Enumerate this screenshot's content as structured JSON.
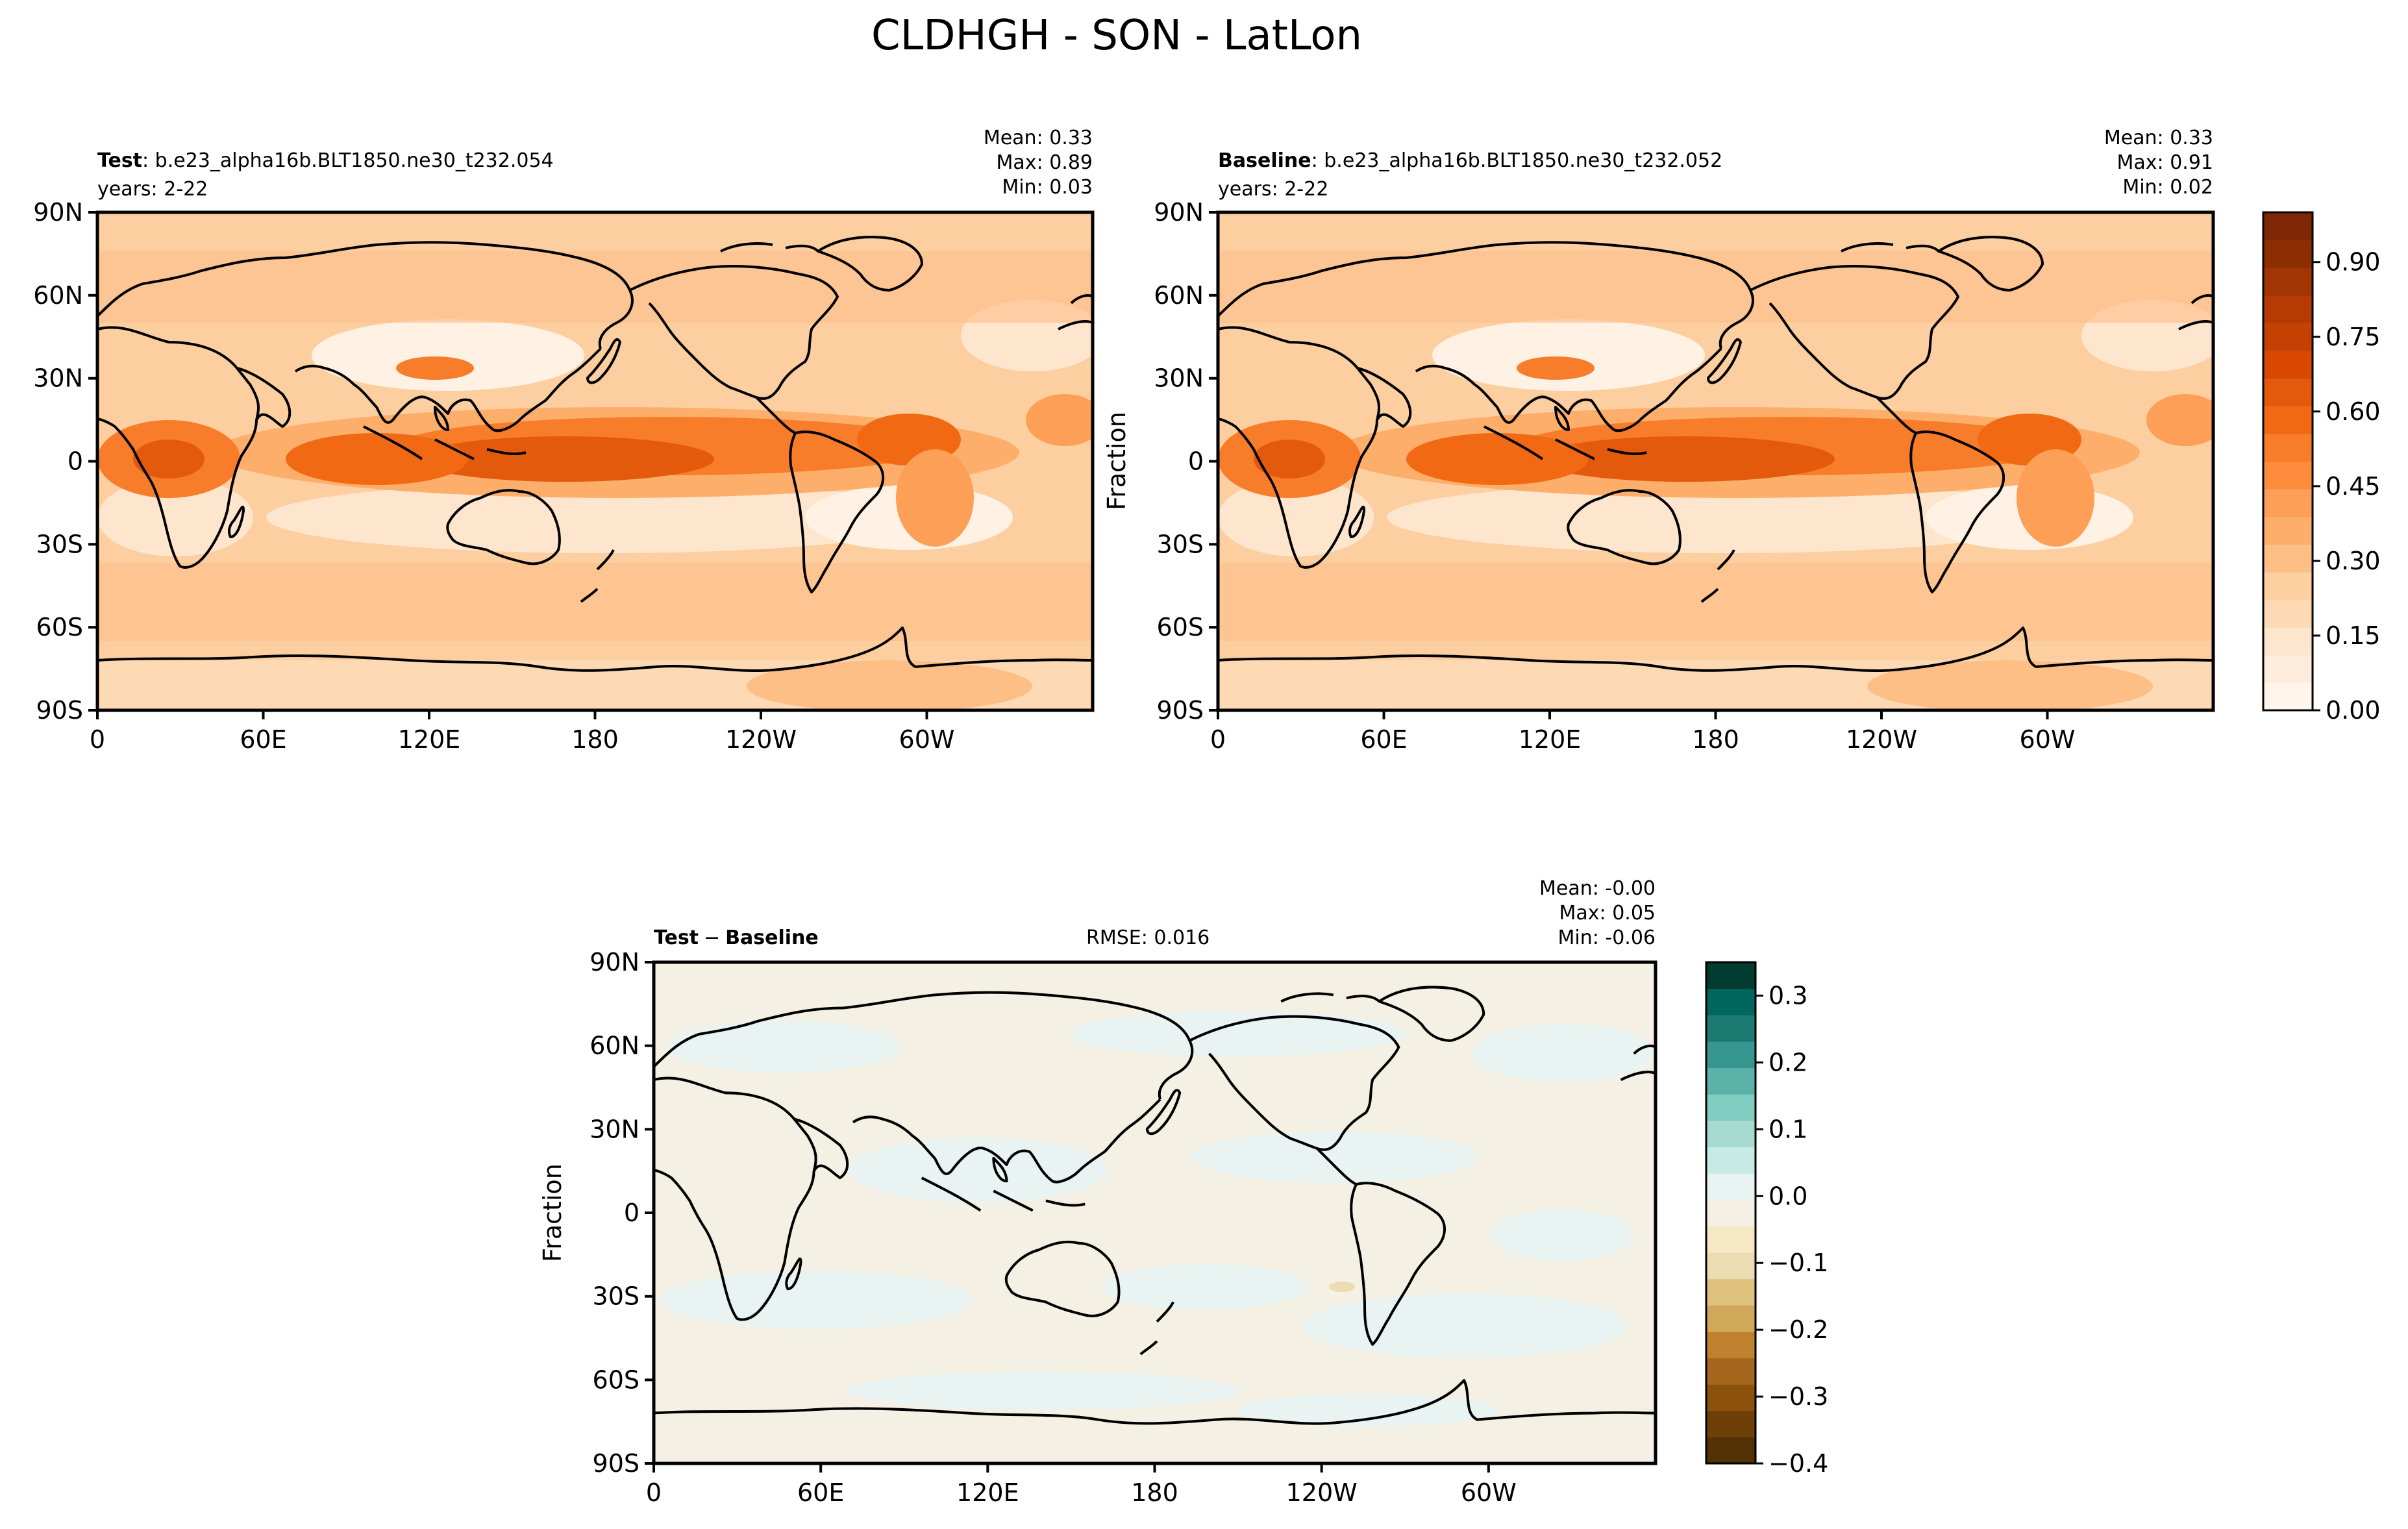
{
  "figure": {
    "title": "CLDHGH - SON - LatLon"
  },
  "chart_data": [
    {
      "type": "heatmap",
      "panel": "test",
      "label_bold": "Test",
      "label_rest": ": b.e23_alpha16b.BLT1850.ne30_t232.054",
      "years": "years: 2-22",
      "stats": [
        "Mean:  0.33",
        "Max:  0.89",
        "Min:  0.03"
      ],
      "ylabel": "",
      "xticks": [
        "0",
        "60E",
        "120E",
        "180",
        "120W",
        "60W"
      ],
      "yticks": [
        "90N",
        "60N",
        "30N",
        "0",
        "30S",
        "60S",
        "90S"
      ],
      "xlim": [
        0,
        360
      ],
      "ylim": [
        -90,
        90
      ],
      "field": "CLDHGH",
      "mean": 0.33,
      "max": 0.89,
      "min": 0.03
    },
    {
      "type": "heatmap",
      "panel": "baseline",
      "label_bold": "Baseline",
      "label_rest": ": b.e23_alpha16b.BLT1850.ne30_t232.052",
      "years": "years: 2-22",
      "stats": [
        "Mean:  0.33",
        "Max:  0.91",
        "Min:  0.02"
      ],
      "ylabel": "Fraction",
      "xticks": [
        "0",
        "60E",
        "120E",
        "180",
        "120W",
        "60W"
      ],
      "yticks": [
        "90N",
        "60N",
        "30N",
        "0",
        "30S",
        "60S",
        "90S"
      ],
      "xlim": [
        0,
        360
      ],
      "ylim": [
        -90,
        90
      ],
      "field": "CLDHGH",
      "mean": 0.33,
      "max": 0.91,
      "min": 0.02,
      "colorbar": {
        "ticks": [
          "0.00",
          "0.15",
          "0.30",
          "0.45",
          "0.60",
          "0.75",
          "0.90"
        ],
        "range": [
          0,
          1.0
        ],
        "colors": [
          "#fff5eb",
          "#feeddc",
          "#fee6ce",
          "#fdd9b4",
          "#fdd0a2",
          "#fdbf86",
          "#fdae6b",
          "#fd9f56",
          "#fd8d3c",
          "#f77d2a",
          "#f16913",
          "#e45a0c",
          "#d94801",
          "#c44103",
          "#b63a03",
          "#a33403",
          "#8c2d04",
          "#7f2704"
        ]
      }
    },
    {
      "type": "heatmap",
      "panel": "difference",
      "label_bold": "Test",
      "label_minus": "−",
      "label_bold2": "Baseline",
      "rmse": "RMSE: 0.016",
      "stats": [
        "Mean: -0.00",
        "Max:  0.05",
        "Min: -0.06"
      ],
      "ylabel": "Fraction",
      "xticks": [
        "0",
        "60E",
        "120E",
        "180",
        "120W",
        "60W"
      ],
      "yticks": [
        "90N",
        "60N",
        "30N",
        "0",
        "30S",
        "60S",
        "90S"
      ],
      "xlim": [
        0,
        360
      ],
      "ylim": [
        -90,
        90
      ],
      "mean": -0.0,
      "max": 0.05,
      "min": -0.06,
      "rmse_value": 0.016,
      "colorbar": {
        "ticks": [
          "0.3",
          "0.2",
          "0.1",
          "0.0",
          "−0.1",
          "−0.2",
          "−0.3",
          "−0.4"
        ],
        "range": [
          -0.4,
          0.35
        ],
        "colors": [
          "#543005",
          "#6e4008",
          "#8c510a",
          "#a5671d",
          "#bf812d",
          "#d1a75a",
          "#dfc27d",
          "#ecdcb2",
          "#f6e8c3",
          "#f5f0e4",
          "#e8f3f2",
          "#c7eae5",
          "#a7dbd2",
          "#80cdc1",
          "#5ab2a8",
          "#35978f",
          "#1b7a71",
          "#01665e",
          "#003c30"
        ]
      }
    }
  ]
}
